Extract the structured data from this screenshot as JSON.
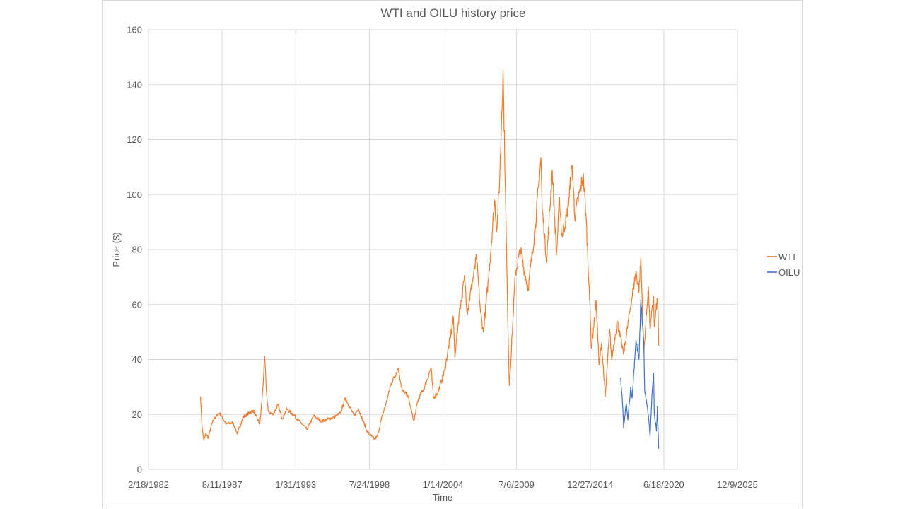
{
  "chart_data": {
    "type": "line",
    "title": "WTI and OILU history price",
    "xlabel": "Time",
    "ylabel": "Price ($)",
    "ylim": [
      0,
      160
    ],
    "yticks": [
      0,
      20,
      40,
      60,
      80,
      100,
      120,
      140,
      160
    ],
    "xlim": [
      "1982-02-18",
      "2025-12-09"
    ],
    "xtick_labels": [
      "2/18/1982",
      "8/11/1987",
      "1/31/1993",
      "7/24/1998",
      "1/14/2004",
      "7/6/2009",
      "12/27/2014",
      "6/18/2020",
      "12/9/2025"
    ],
    "x_gridlines": "vertical at each x tick",
    "y_gridlines": "horizontal at each y tick",
    "legend_position": "right",
    "series": [
      {
        "name": "WTI",
        "color": "#ED7D31",
        "points": [
          [
            "1986-01-02",
            26.5
          ],
          [
            "1986-02-15",
            15.0
          ],
          [
            "1986-04-01",
            10.5
          ],
          [
            "1986-06-01",
            13.0
          ],
          [
            "1986-08-01",
            11.5
          ],
          [
            "1986-10-01",
            15.0
          ],
          [
            "1987-01-01",
            18.5
          ],
          [
            "1987-06-01",
            20.5
          ],
          [
            "1987-12-01",
            16.5
          ],
          [
            "1988-06-01",
            17.0
          ],
          [
            "1988-10-01",
            13.0
          ],
          [
            "1989-03-01",
            19.0
          ],
          [
            "1989-12-01",
            21.5
          ],
          [
            "1990-06-01",
            16.5
          ],
          [
            "1990-08-15",
            28.0
          ],
          [
            "1990-10-10",
            41.0
          ],
          [
            "1990-12-01",
            27.5
          ],
          [
            "1991-01-17",
            21.0
          ],
          [
            "1991-06-01",
            20.0
          ],
          [
            "1991-10-01",
            23.5
          ],
          [
            "1992-02-01",
            18.5
          ],
          [
            "1992-06-01",
            22.0
          ],
          [
            "1993-01-01",
            19.5
          ],
          [
            "1993-12-01",
            14.5
          ],
          [
            "1994-06-01",
            19.5
          ],
          [
            "1995-01-01",
            17.5
          ],
          [
            "1995-12-01",
            19.0
          ],
          [
            "1996-06-01",
            20.5
          ],
          [
            "1996-10-10",
            26.0
          ],
          [
            "1997-06-01",
            19.5
          ],
          [
            "1997-10-01",
            22.0
          ],
          [
            "1998-06-01",
            13.5
          ],
          [
            "1998-12-10",
            11.0
          ],
          [
            "1999-03-01",
            12.0
          ],
          [
            "1999-06-01",
            17.5
          ],
          [
            "1999-12-01",
            26.0
          ],
          [
            "2000-03-01",
            31.0
          ],
          [
            "2000-09-20",
            37.0
          ],
          [
            "2001-01-01",
            28.5
          ],
          [
            "2001-06-01",
            27.0
          ],
          [
            "2001-11-15",
            17.5
          ],
          [
            "2002-03-01",
            25.0
          ],
          [
            "2002-09-01",
            30.0
          ],
          [
            "2003-02-25",
            37.0
          ],
          [
            "2003-05-01",
            26.0
          ],
          [
            "2003-09-01",
            28.0
          ],
          [
            "2004-03-01",
            36.0
          ],
          [
            "2004-10-25",
            55.0
          ],
          [
            "2004-12-01",
            41.0
          ],
          [
            "2005-04-01",
            57.0
          ],
          [
            "2005-08-29",
            70.0
          ],
          [
            "2005-11-01",
            57.0
          ],
          [
            "2006-07-14",
            77.0
          ],
          [
            "2006-11-01",
            57.0
          ],
          [
            "2007-01-15",
            50.0
          ],
          [
            "2007-06-01",
            69.0
          ],
          [
            "2007-11-20",
            98.0
          ],
          [
            "2008-01-15",
            87.0
          ],
          [
            "2008-04-01",
            105.0
          ],
          [
            "2008-07-03",
            145.5
          ],
          [
            "2008-09-15",
            95.0
          ],
          [
            "2008-11-01",
            60.0
          ],
          [
            "2008-12-20",
            30.5
          ],
          [
            "2009-02-01",
            40.0
          ],
          [
            "2009-06-01",
            71.0
          ],
          [
            "2009-10-20",
            80.0
          ],
          [
            "2010-02-01",
            72.0
          ],
          [
            "2010-05-20",
            66.0
          ],
          [
            "2010-12-01",
            89.0
          ],
          [
            "2011-04-29",
            113.5
          ],
          [
            "2011-06-01",
            95.0
          ],
          [
            "2011-10-01",
            76.0
          ],
          [
            "2012-03-01",
            109.0
          ],
          [
            "2012-06-25",
            78.0
          ],
          [
            "2012-09-15",
            99.0
          ],
          [
            "2012-11-15",
            85.0
          ],
          [
            "2013-04-01",
            92.0
          ],
          [
            "2013-08-28",
            110.5
          ],
          [
            "2013-11-01",
            92.0
          ],
          [
            "2014-06-20",
            107.0
          ],
          [
            "2014-09-01",
            93.0
          ],
          [
            "2014-12-01",
            66.0
          ],
          [
            "2015-01-28",
            44.0
          ],
          [
            "2015-06-10",
            61.0
          ],
          [
            "2015-08-24",
            38.0
          ],
          [
            "2015-11-01",
            46.0
          ],
          [
            "2016-02-11",
            26.5
          ],
          [
            "2016-06-08",
            51.0
          ],
          [
            "2016-08-02",
            40.0
          ],
          [
            "2016-12-28",
            54.0
          ],
          [
            "2017-06-21",
            42.0
          ],
          [
            "2017-12-01",
            57.0
          ],
          [
            "2018-05-22",
            72.0
          ],
          [
            "2018-08-15",
            65.0
          ],
          [
            "2018-10-03",
            77.0
          ],
          [
            "2018-12-24",
            42.5
          ],
          [
            "2019-04-23",
            66.5
          ],
          [
            "2019-06-12",
            51.0
          ],
          [
            "2019-09-16",
            63.0
          ],
          [
            "2019-10-03",
            52.0
          ],
          [
            "2019-12-27",
            62.0
          ],
          [
            "2020-01-15",
            57.0
          ],
          [
            "2020-01-31",
            45.0
          ]
        ]
      },
      {
        "name": "OILU",
        "color": "#4472C4",
        "points": [
          [
            "2017-04-01",
            33.5
          ],
          [
            "2017-06-01",
            22.0
          ],
          [
            "2017-06-21",
            15.0
          ],
          [
            "2017-09-01",
            24.0
          ],
          [
            "2017-10-15",
            18.0
          ],
          [
            "2018-01-01",
            30.0
          ],
          [
            "2018-02-09",
            26.0
          ],
          [
            "2018-05-22",
            47.0
          ],
          [
            "2018-08-15",
            40.0
          ],
          [
            "2018-10-03",
            62.0
          ],
          [
            "2018-12-01",
            50.0
          ],
          [
            "2018-12-24",
            45.0
          ],
          [
            "2019-01-15",
            29.0
          ],
          [
            "2019-04-23",
            20.0
          ],
          [
            "2019-06-12",
            12.0
          ],
          [
            "2019-08-01",
            27.0
          ],
          [
            "2019-09-16",
            35.0
          ],
          [
            "2019-10-03",
            20.0
          ],
          [
            "2019-12-01",
            14.0
          ],
          [
            "2019-12-27",
            23.0
          ],
          [
            "2020-01-20",
            12.0
          ],
          [
            "2020-01-31",
            7.5
          ]
        ]
      }
    ]
  }
}
